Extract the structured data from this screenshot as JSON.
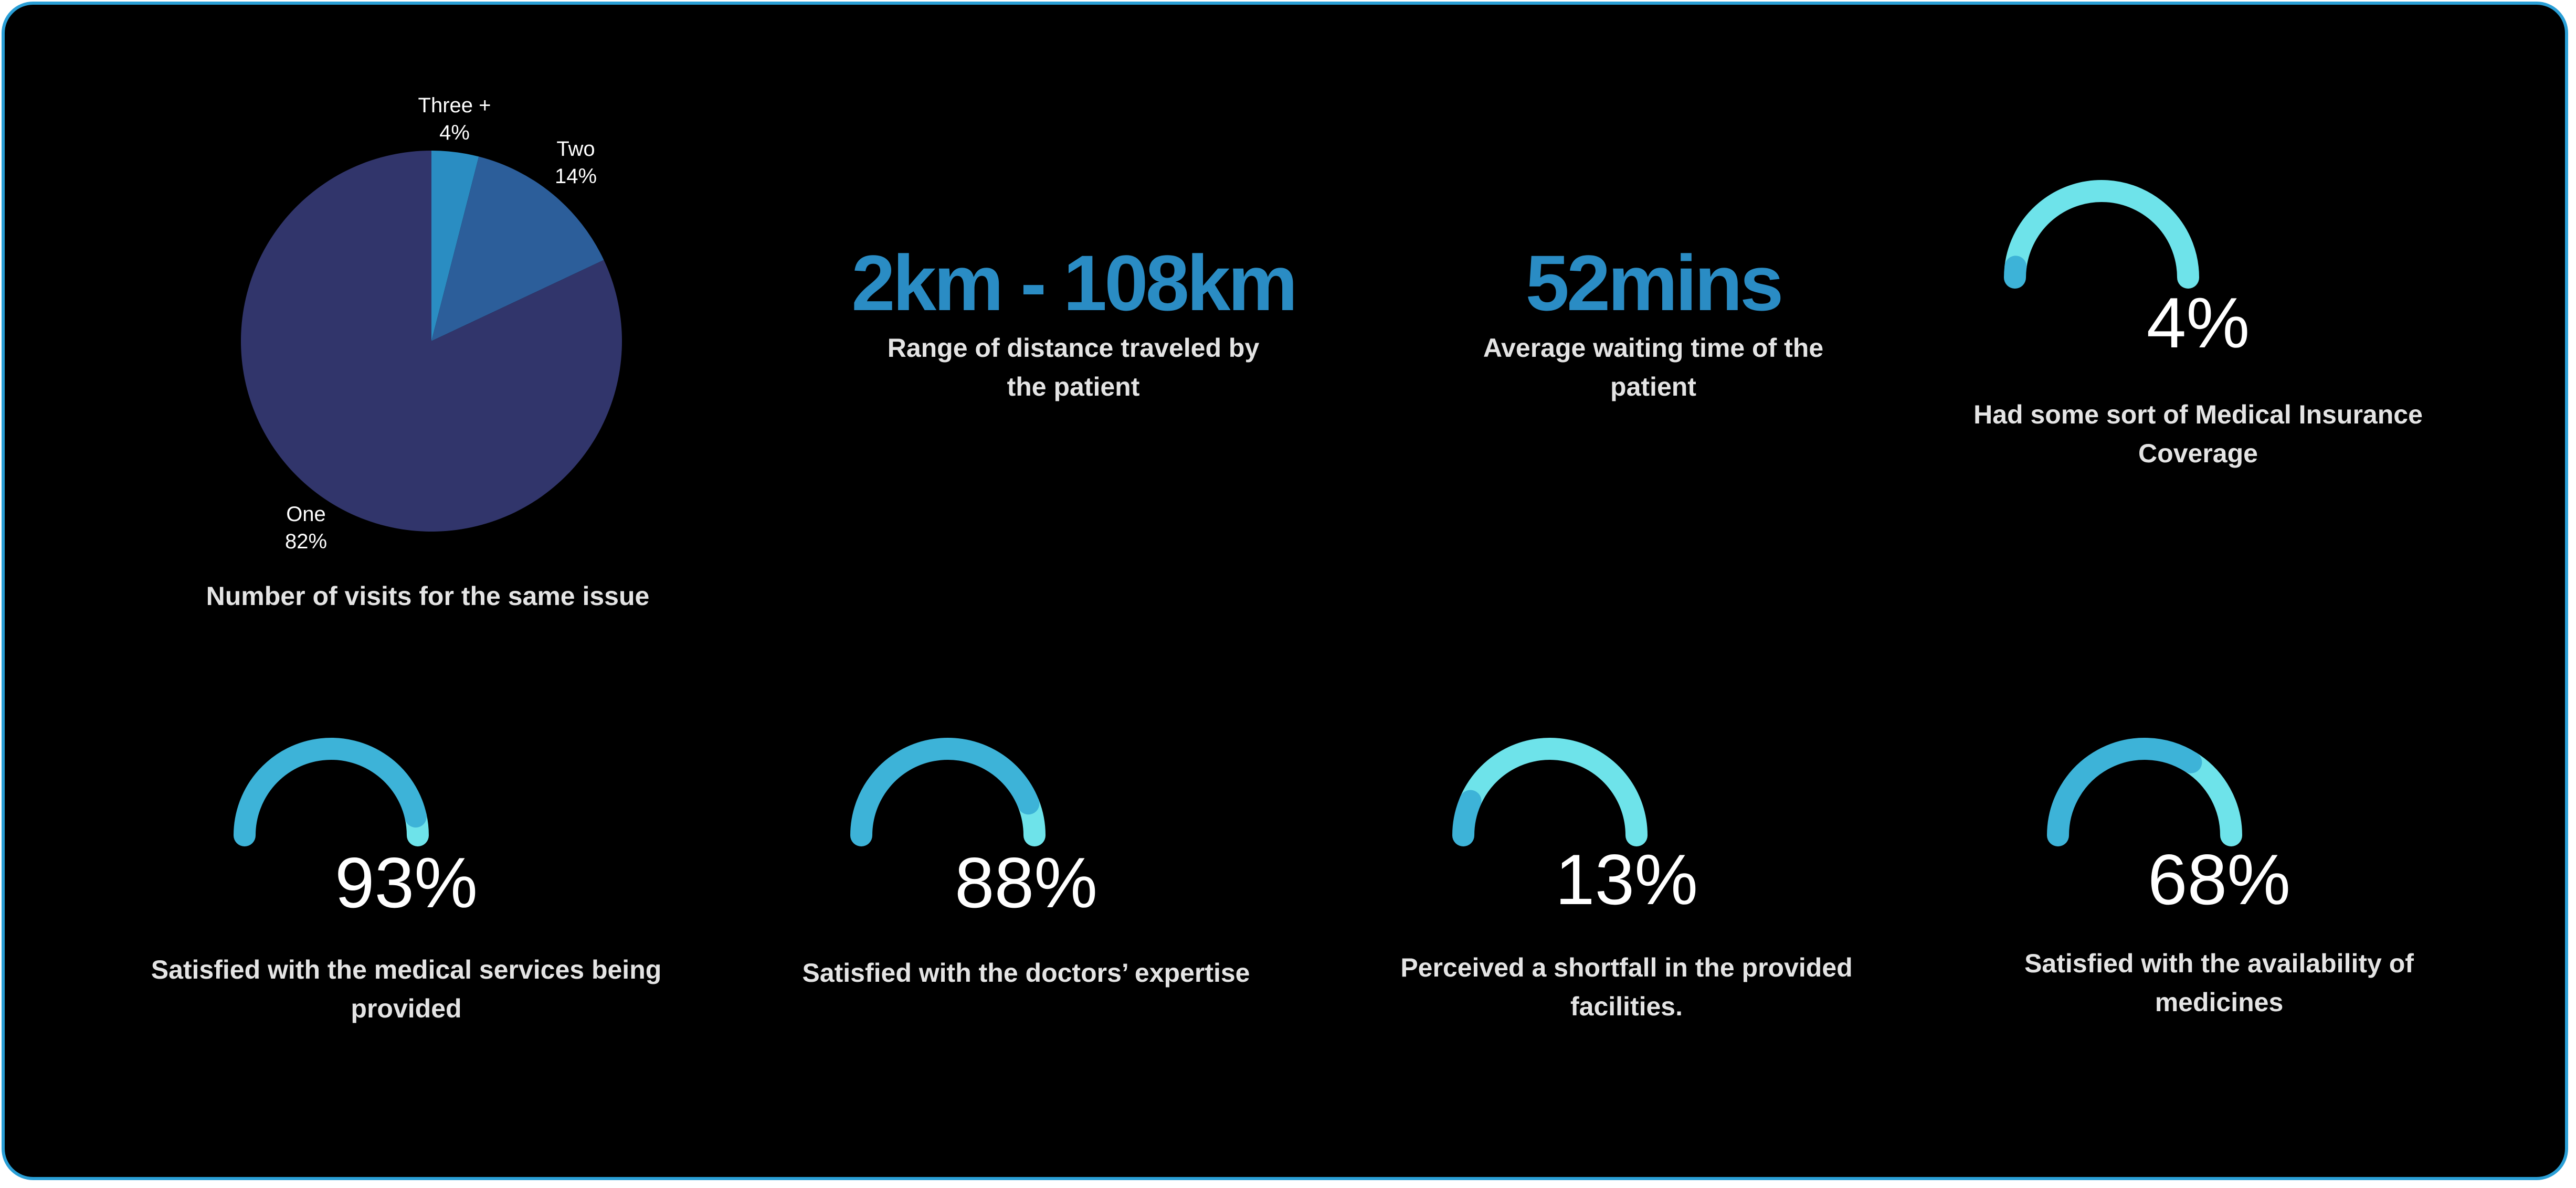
{
  "colors": {
    "background": "#000000",
    "frame_border": "#2a9fd6",
    "stat_text": "#2a8cc4",
    "caption_text": "#e4e4e4",
    "gauge_dark": "#3db3d8",
    "gauge_light": "#6ee3ea",
    "pie_one": "#31356b",
    "pie_two": "#2c5e9a",
    "pie_three": "#2a8dc2"
  },
  "chart_data": [
    {
      "type": "pie",
      "title": "Number of visits for the same issue",
      "slices": [
        {
          "label": "Three +",
          "value": 4,
          "display": "4%",
          "color": "#2a8dc2"
        },
        {
          "label": "Two",
          "value": 14,
          "display": "14%",
          "color": "#2c5e9a"
        },
        {
          "label": "One",
          "value": 82,
          "display": "82%",
          "color": "#31356b"
        }
      ]
    },
    {
      "type": "gauge",
      "value": 4,
      "display": "4%",
      "title": "Had some sort of Medical Insurance Coverage"
    },
    {
      "type": "gauge",
      "value": 93,
      "display": "93%",
      "title": "Satisfied with the medical services being provided"
    },
    {
      "type": "gauge",
      "value": 88,
      "display": "88%",
      "title": "Satisfied with the doctors’ expertise"
    },
    {
      "type": "gauge",
      "value": 13,
      "display": "13%",
      "title": "Perceived a shortfall in the provided facilities."
    },
    {
      "type": "gauge",
      "value": 68,
      "display": "68%",
      "title": "Satisfied with the availability of medicines"
    }
  ],
  "stats": [
    {
      "value": "2km - 108km",
      "caption": "Range of distance traveled by the patient"
    },
    {
      "value": "52mins",
      "caption": "Average waiting time of the patient"
    }
  ]
}
